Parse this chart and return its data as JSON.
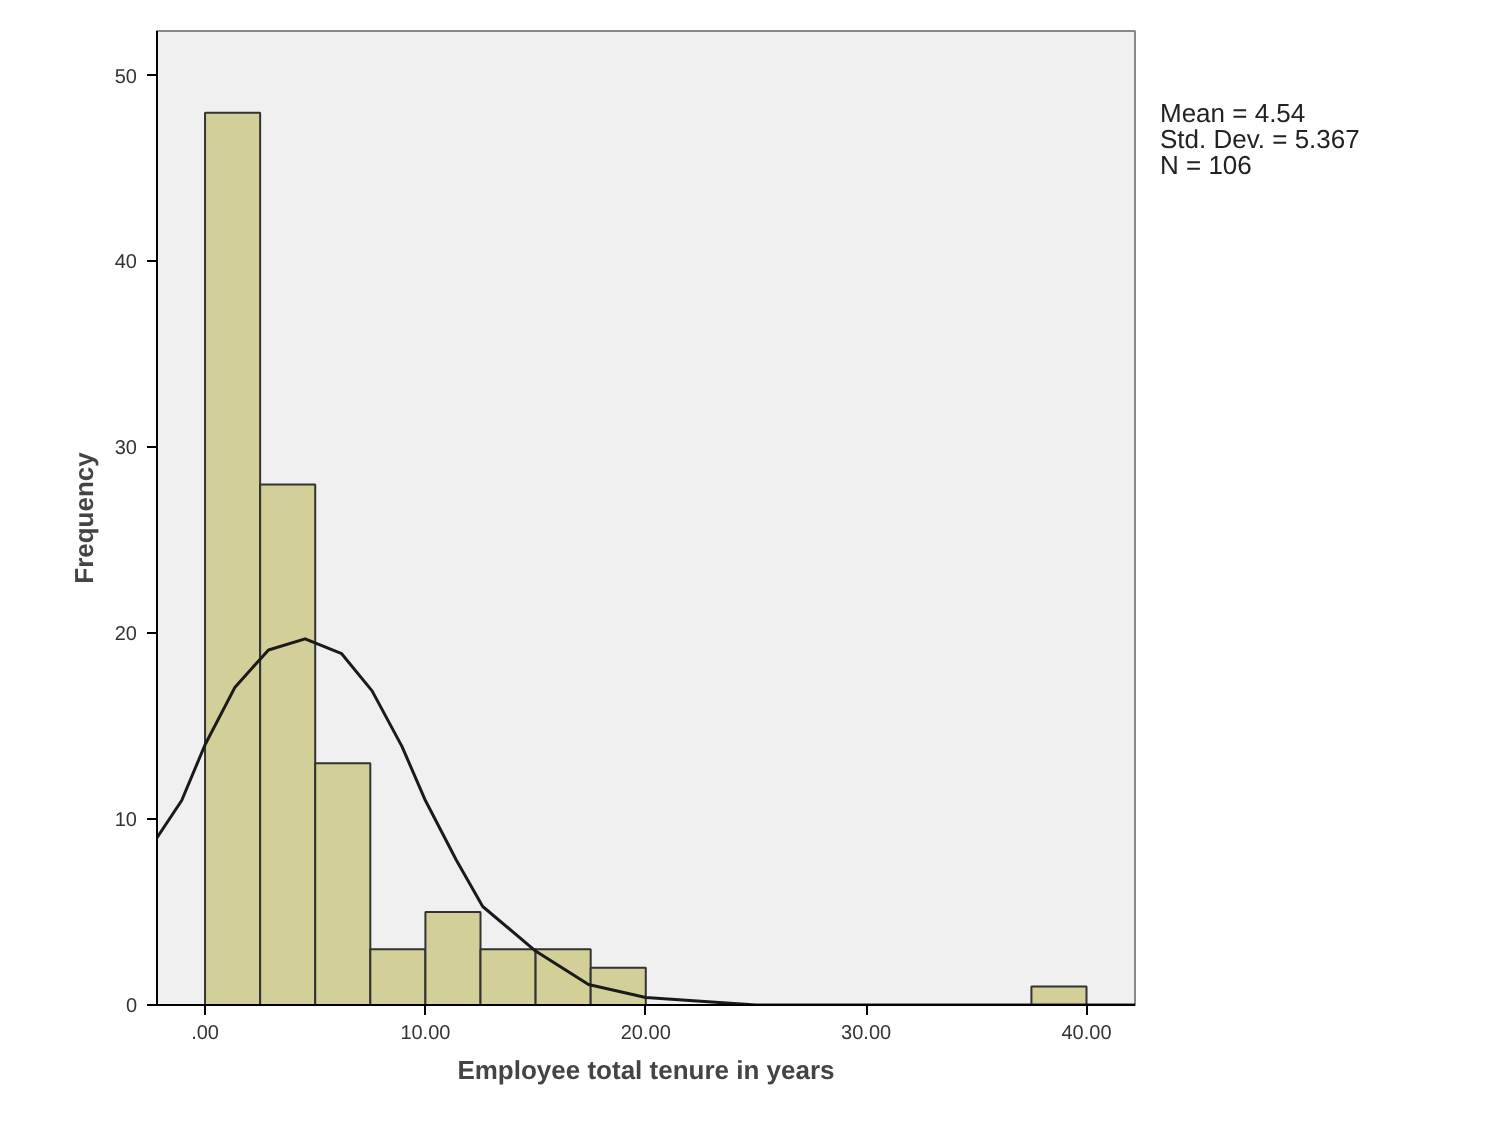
{
  "chart_data": {
    "type": "histogram",
    "xlabel": "Employee total tenure in years",
    "ylabel": "Frequency",
    "bins": [
      0,
      2.5,
      5,
      7.5,
      10,
      12.5,
      15,
      17.5,
      20,
      22.5,
      25,
      27.5,
      30,
      32.5,
      35,
      37.5,
      40
    ],
    "values": [
      48,
      28,
      13,
      3,
      5,
      3,
      3,
      2,
      0,
      0,
      0,
      0,
      0,
      0,
      0,
      1
    ],
    "color": "#d3cf98",
    "series": [
      {
        "type": "line",
        "color": "#1a1a1a",
        "x": [
          -2.18,
          -1.06,
          0,
          1.36,
          2.88,
          4.54,
          6.2,
          7.58,
          8.94,
          10.0,
          11.4,
          12.6,
          15.0,
          17.4,
          20.0,
          25.0,
          30.0,
          42.2
        ],
        "values": [
          9.0,
          11.0,
          14.0,
          17.1,
          19.1,
          19.7,
          18.9,
          16.9,
          13.9,
          11.0,
          7.8,
          5.3,
          2.9,
          1.1,
          0.4,
          0,
          0,
          0
        ]
      }
    ],
    "xlim": [
      -2.18,
      42.2
    ],
    "ylim": [
      0,
      52.4
    ],
    "xticks": [
      {
        "value": 0,
        "label": ".00"
      },
      {
        "value": 10,
        "label": "10.00"
      },
      {
        "value": 20,
        "label": "20.00"
      },
      {
        "value": 30,
        "label": "30.00"
      },
      {
        "value": 40,
        "label": "40.00"
      }
    ],
    "yticks": [
      0,
      10,
      20,
      30,
      40,
      50
    ],
    "grid": false,
    "annotations": [
      "Mean = 4.54",
      "Std. Dev. = 5.367",
      "N = 106"
    ]
  }
}
